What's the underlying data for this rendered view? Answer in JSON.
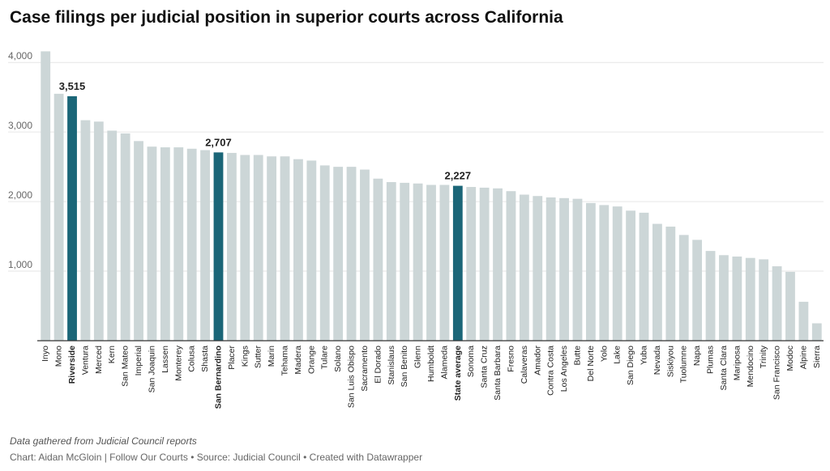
{
  "chart_data": {
    "type": "bar",
    "title": "Case filings per judicial position in superior courts across California",
    "xlabel": "",
    "ylabel": "",
    "ylim": [
      0,
      4200
    ],
    "yticks": [
      1000,
      2000,
      3000,
      4000
    ],
    "ytick_labels": [
      "1,000",
      "2,000",
      "3,000",
      "4,000"
    ],
    "grid": true,
    "colors": {
      "default": "#ccd6d7",
      "highlight": "#1b6678",
      "grid": "#e6e6e6",
      "axis": "#333333"
    },
    "categories": [
      "Inyo",
      "Mono",
      "Riverside",
      "Ventura",
      "Merced",
      "Kern",
      "San Mateo",
      "Imperial",
      "San Joaquin",
      "Lassen",
      "Monterey",
      "Colusa",
      "Shasta",
      "San Bernardino",
      "Placer",
      "Kings",
      "Sutter",
      "Marin",
      "Tehama",
      "Madera",
      "Orange",
      "Tulare",
      "Solano",
      "San Luis Obispo",
      "Sacramento",
      "El Dorado",
      "Stanislaus",
      "San Benito",
      "Glenn",
      "Humboldt",
      "Alameda",
      "State average",
      "Sonoma",
      "Santa Cruz",
      "Santa Barbara",
      "Fresno",
      "Calaveras",
      "Amador",
      "Contra Costa",
      "Los Angeles",
      "Butte",
      "Del Norte",
      "Yolo",
      "Lake",
      "San Diego",
      "Yuba",
      "Nevada",
      "Siskiyou",
      "Tuolumne",
      "Napa",
      "Plumas",
      "Santa Clara",
      "Mariposa",
      "Mendocino",
      "Trinity",
      "San Francisco",
      "Modoc",
      "Alpine",
      "Sierra"
    ],
    "values": [
      4160,
      3550,
      3515,
      3170,
      3150,
      3020,
      2980,
      2870,
      2790,
      2780,
      2780,
      2760,
      2740,
      2707,
      2700,
      2670,
      2670,
      2650,
      2650,
      2610,
      2590,
      2520,
      2500,
      2500,
      2460,
      2330,
      2280,
      2270,
      2260,
      2240,
      2240,
      2227,
      2210,
      2200,
      2190,
      2150,
      2100,
      2080,
      2060,
      2050,
      2040,
      1980,
      1950,
      1930,
      1870,
      1840,
      1680,
      1640,
      1520,
      1450,
      1290,
      1230,
      1210,
      1190,
      1170,
      1070,
      990,
      560,
      250
    ],
    "highlighted": [
      "Riverside",
      "San Bernardino",
      "State average"
    ],
    "annotations": [
      {
        "category": "Riverside",
        "label": "3,515"
      },
      {
        "category": "San Bernardino",
        "label": "2,707"
      },
      {
        "category": "State average",
        "label": "2,227"
      }
    ]
  },
  "notes": {
    "data_note": "Data gathered from Judicial Council reports",
    "source": "Chart: Aidan McGloin | Follow Our Courts • Source: Judicial Council • Created with Datawrapper"
  }
}
